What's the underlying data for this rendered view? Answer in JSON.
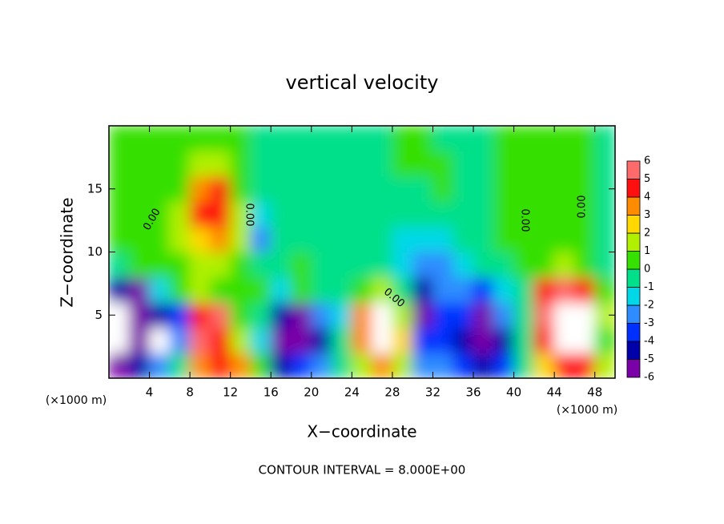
{
  "chart_data": {
    "type": "heatmap",
    "title": "vertical velocity",
    "x_label": "X−coordinate",
    "y_label": "Z−coordinate",
    "x_unit": "(×1000 m)",
    "footer": "CONTOUR INTERVAL = 8.000E+00",
    "annotations": [
      "0.00",
      "0.00",
      "0.00",
      "0.00",
      "0.00"
    ],
    "x": [
      1,
      3,
      5,
      7,
      9,
      11,
      13,
      15,
      17,
      19,
      21,
      23,
      25,
      27,
      29,
      31,
      33,
      35,
      37,
      39,
      41,
      43,
      45,
      47,
      49
    ],
    "y": [
      1,
      3,
      5,
      7,
      9,
      11,
      13,
      15,
      17,
      19
    ],
    "values": [
      [
        -5,
        -7,
        -7,
        -4,
        0,
        0.5,
        0.3,
        0.3,
        0.3,
        0.3
      ],
      [
        -4,
        -5,
        -6,
        -5,
        0.5,
        0.5,
        0.3,
        0.3,
        0.3,
        0.3
      ],
      [
        -2,
        -7,
        -4,
        -1,
        0.5,
        0.8,
        0.5,
        0.3,
        0.3,
        0.3
      ],
      [
        0,
        -2,
        -3,
        0.5,
        1,
        1.5,
        1.5,
        0.8,
        0.5,
        0.3
      ],
      [
        4,
        6,
        5,
        1.5,
        2,
        3,
        4.5,
        4,
        2,
        0.5
      ],
      [
        5,
        5,
        6,
        1,
        2,
        3.5,
        5,
        4.5,
        2,
        0.5
      ],
      [
        4,
        2,
        1,
        0.5,
        1,
        1.5,
        1.5,
        1,
        0.5,
        0.3
      ],
      [
        0.5,
        -1,
        0,
        0.3,
        0,
        -2,
        -1,
        0,
        0,
        0
      ],
      [
        -4,
        -6,
        -4,
        -1,
        -0.5,
        -0.5,
        0,
        0,
        0,
        0
      ],
      [
        -3,
        -6,
        -5,
        1,
        0.5,
        0,
        0,
        0,
        0,
        0
      ],
      [
        -2,
        -4,
        -2,
        0,
        0,
        0,
        0,
        0,
        0,
        0
      ],
      [
        0,
        0,
        -1,
        0,
        0,
        0,
        0,
        0,
        0,
        0
      ],
      [
        2,
        4,
        4,
        1,
        0,
        0,
        0,
        0,
        0,
        0
      ],
      [
        4,
        7,
        7,
        2,
        0,
        0,
        0,
        0,
        0,
        0
      ],
      [
        2,
        3,
        2,
        0,
        -1,
        -1,
        0,
        0,
        0.5,
        0.5
      ],
      [
        -2,
        -3,
        -5,
        -4,
        -2,
        -1,
        -0.5,
        0,
        0.5,
        0.5
      ],
      [
        -2,
        -3,
        -3,
        -2,
        -2,
        -1,
        -0.5,
        0.5,
        0.5,
        0
      ],
      [
        -3,
        -4,
        -3,
        -2,
        -1,
        -0.5,
        0,
        0,
        0,
        0
      ],
      [
        -4,
        -6,
        -5,
        -3,
        -0.5,
        0,
        0,
        0,
        0,
        0
      ],
      [
        -3,
        -4,
        -2,
        -1,
        0,
        0.3,
        0.3,
        0.3,
        0.3,
        0.3
      ],
      [
        0,
        0,
        0,
        0,
        0.5,
        0.3,
        0.3,
        0.3,
        0.3,
        0.3
      ],
      [
        3,
        5,
        6,
        5,
        1,
        0.3,
        0.3,
        0.3,
        0.3,
        0.3
      ],
      [
        5,
        8,
        8,
        6,
        2,
        0.5,
        0.3,
        0.3,
        0.3,
        0.3
      ],
      [
        5,
        7,
        7,
        5,
        1,
        0.3,
        0.3,
        0.3,
        0.3,
        0.3
      ],
      [
        2,
        1,
        2,
        1,
        0,
        0,
        0,
        0,
        0,
        0
      ]
    ],
    "xlim": [
      0,
      50
    ],
    "ylim": [
      0,
      20
    ],
    "xticks": [
      4,
      8,
      12,
      16,
      20,
      24,
      28,
      32,
      36,
      40,
      44,
      48
    ],
    "yticks": [
      5,
      10,
      15
    ],
    "levels": [
      -6,
      -5,
      -4,
      -3,
      -2,
      -1,
      0,
      1,
      2,
      3,
      4,
      5,
      6
    ],
    "colors": [
      "#7a00a8",
      "#0000a8",
      "#0030ff",
      "#2f8cff",
      "#00d8e8",
      "#00e08a",
      "#36e000",
      "#b0f000",
      "#ffd800",
      "#ff8c00",
      "#ff1010",
      "#ff6a6a"
    ],
    "out_of_range_color": "#ffffff"
  }
}
